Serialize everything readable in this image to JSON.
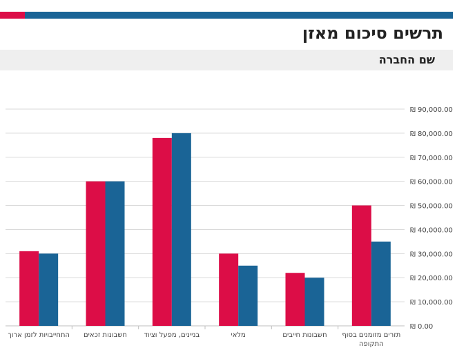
{
  "header": {
    "title": "תרשים סיכום מאזן",
    "subtitle": "שם החברה"
  },
  "colors": {
    "series_a": "#dc0d47",
    "series_b": "#1a6496",
    "grid": "#d9d9d9"
  },
  "chart_data": {
    "type": "bar",
    "categories": [
      "התחייבויות לזמן ארוך",
      "חשבונות זכאים",
      "בניינים, מפעל וציוד",
      "מלאי",
      "חשבונות חייבים",
      "תזרים מזומנים בסוף התקופה"
    ],
    "category_lines": [
      [
        "התחייבויות לזמן ארוך"
      ],
      [
        "חשבונות זכאים"
      ],
      [
        "בניינים, מפעל וציוד"
      ],
      [
        "מלאי"
      ],
      [
        "חשבונות חייבים"
      ],
      [
        "תזרים מזומנים בסוף",
        "התקופה"
      ]
    ],
    "series": [
      {
        "values": [
          31000,
          60000,
          78000,
          30000,
          22000,
          50000
        ]
      },
      {
        "values": [
          30000,
          60000,
          80000,
          25000,
          20000,
          35000
        ]
      }
    ],
    "ylim": [
      0,
      90000
    ],
    "yticks": [
      "₪ 0.00",
      "₪ 10,000.00",
      "₪ 20,000.00",
      "₪ 30,000.00",
      "₪ 40,000.00",
      "₪ 50,000.00",
      "₪ 60,000.00",
      "₪ 70,000.00",
      "₪ 80,000.00",
      "₪ 90,000.00"
    ],
    "y_axis_side": "right",
    "grid": true,
    "title": "",
    "xlabel": "",
    "ylabel": ""
  }
}
